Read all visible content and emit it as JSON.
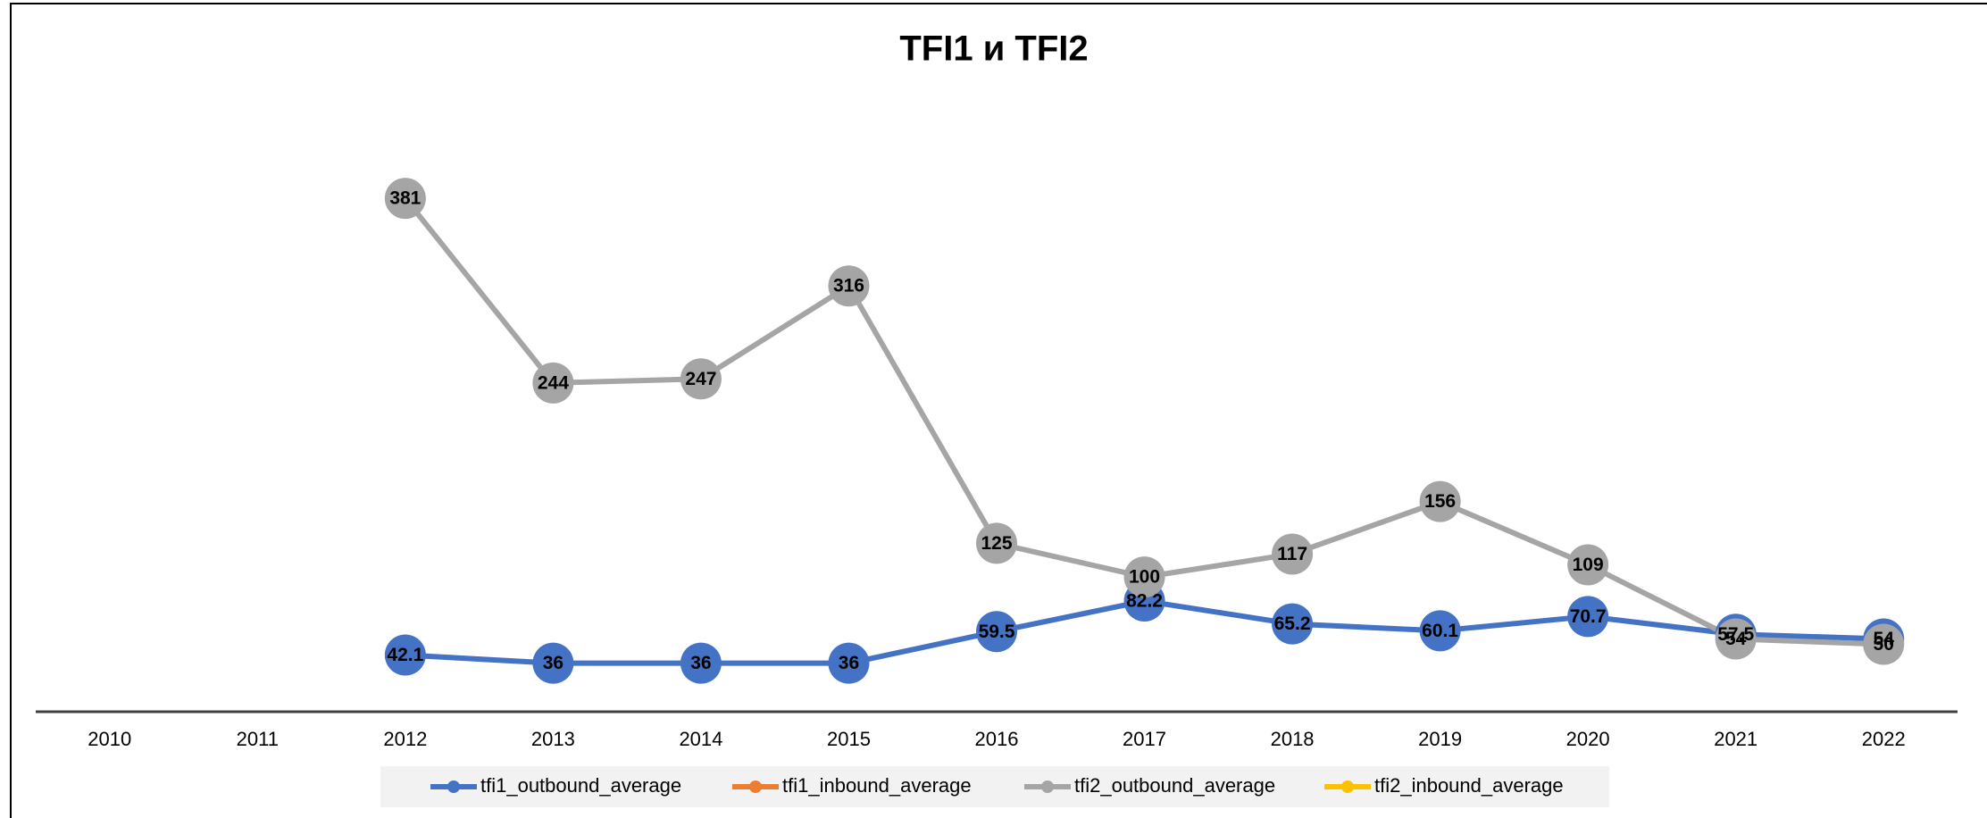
{
  "chart_data": {
    "type": "line",
    "title": "TFI1 и TFI2",
    "categories": [
      "2010",
      "2011",
      "2012",
      "2013",
      "2014",
      "2015",
      "2016",
      "2017",
      "2018",
      "2019",
      "2020",
      "2021",
      "2022"
    ],
    "series": [
      {
        "name": "tfi1_outbound_average",
        "color": "#4472c4",
        "values": [
          null,
          null,
          42.1,
          36,
          36,
          36,
          59.5,
          82.2,
          65.2,
          60.1,
          70.7,
          57.5,
          54
        ]
      },
      {
        "name": "tfi1_inbound_average",
        "color": "#ed7d31",
        "values": [
          null,
          null,
          null,
          null,
          null,
          null,
          null,
          null,
          null,
          null,
          null,
          null,
          null
        ]
      },
      {
        "name": "tfi2_outbound_average",
        "color": "#a5a5a5",
        "values": [
          null,
          null,
          381,
          244,
          247,
          316,
          125,
          100,
          117,
          156,
          109,
          54,
          50
        ]
      },
      {
        "name": "tfi2_inbound_average",
        "color": "#ffc000",
        "values": [
          null,
          null,
          null,
          null,
          null,
          null,
          null,
          null,
          null,
          null,
          null,
          null,
          null
        ]
      }
    ],
    "ylim": [
      0,
      450
    ],
    "legend": "bottom",
    "data_labels": true
  }
}
